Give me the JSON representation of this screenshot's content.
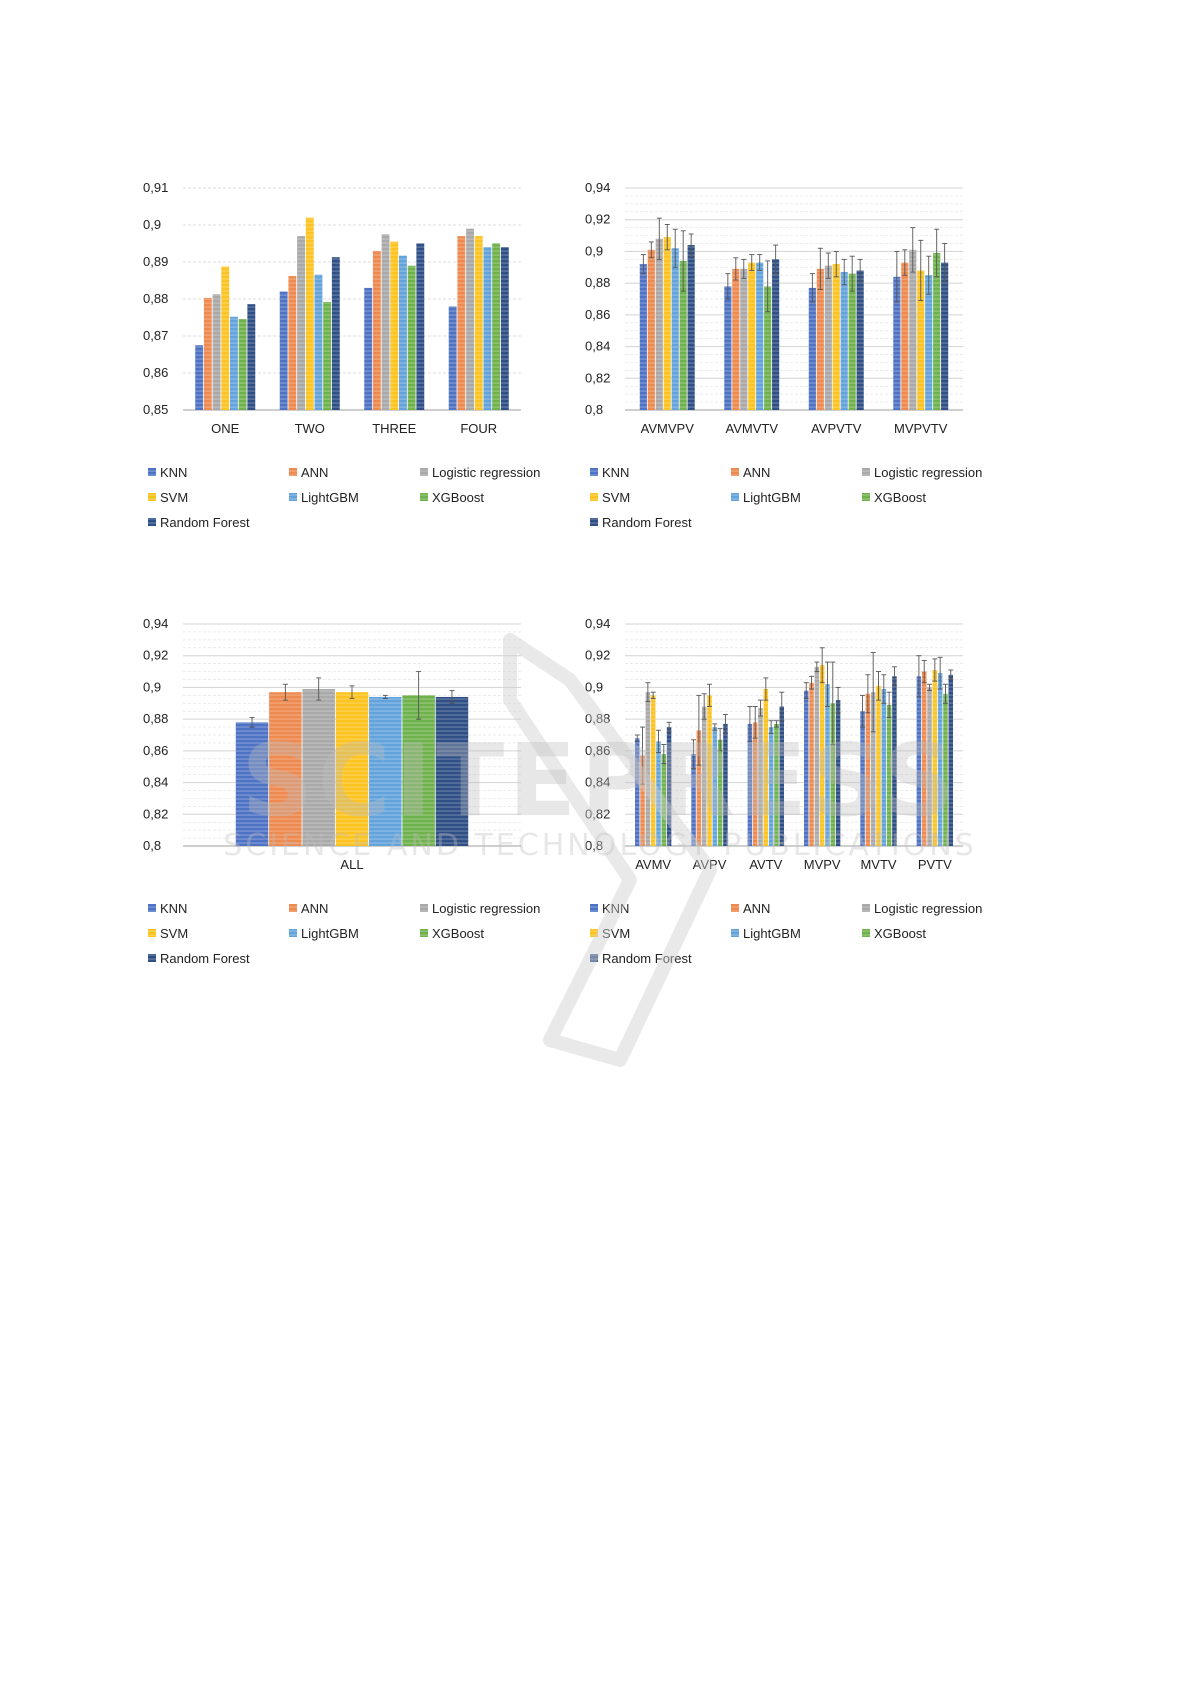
{
  "legend": [
    "KNN",
    "ANN",
    "Logistic regression",
    "SVM",
    "LightGBM",
    "XGBoost",
    "Random Forest"
  ],
  "colors": {
    "KNN": "#4f73c4",
    "ANN": "#ee8a4f",
    "Logistic regression": "#a9a9a9",
    "SVM": "#fcc321",
    "LightGBM": "#63a3dc",
    "XGBoost": "#6fb24d",
    "Random Forest": "#2f4f86"
  },
  "watermark": {
    "line1": "SCITEPRESS",
    "line2": "SCIENCE AND TECHNOLOGY PUBLICATIONS"
  },
  "chart_data": [
    {
      "type": "bar",
      "categories": [
        "ONE",
        "TWO",
        "THREE",
        "FOUR"
      ],
      "ylim": [
        0.85,
        0.91
      ],
      "yticks": [
        "0,85",
        "0,86",
        "0,87",
        "0,88",
        "0,89",
        "0,9",
        "0,91"
      ],
      "grid": true,
      "error_bars": false,
      "series": [
        {
          "name": "KNN",
          "values": [
            0.8675,
            0.882,
            0.883,
            0.878
          ]
        },
        {
          "name": "ANN",
          "values": [
            0.8803,
            0.8862,
            0.893,
            0.897
          ]
        },
        {
          "name": "Logistic regression",
          "values": [
            0.8813,
            0.897,
            0.8975,
            0.899
          ]
        },
        {
          "name": "SVM",
          "values": [
            0.8888,
            0.902,
            0.8955,
            0.897
          ]
        },
        {
          "name": "LightGBM",
          "values": [
            0.8752,
            0.8866,
            0.8917,
            0.894
          ]
        },
        {
          "name": "XGBoost",
          "values": [
            0.8746,
            0.8792,
            0.889,
            0.895
          ]
        },
        {
          "name": "Random Forest",
          "values": [
            0.8786,
            0.8913,
            0.895,
            0.894
          ]
        }
      ]
    },
    {
      "type": "bar",
      "categories": [
        "AVMVPV",
        "AVMVTV",
        "AVPVTV",
        "MVPVTV"
      ],
      "ylim": [
        0.8,
        0.94
      ],
      "yticks": [
        "0,8",
        "0,82",
        "0,84",
        "0,86",
        "0,88",
        "0,9",
        "0,92",
        "0,94"
      ],
      "grid": true,
      "error_bars": true,
      "series": [
        {
          "name": "KNN",
          "values": [
            0.892,
            0.878,
            0.877,
            0.884
          ],
          "errors": [
            0.006,
            0.008,
            0.009,
            0.016
          ]
        },
        {
          "name": "ANN",
          "values": [
            0.901,
            0.889,
            0.889,
            0.893
          ],
          "errors": [
            0.005,
            0.007,
            0.013,
            0.008
          ]
        },
        {
          "name": "Logistic regression",
          "values": [
            0.908,
            0.889,
            0.891,
            0.901
          ],
          "errors": [
            0.013,
            0.006,
            0.008,
            0.014
          ]
        },
        {
          "name": "SVM",
          "values": [
            0.909,
            0.893,
            0.892,
            0.888
          ],
          "errors": [
            0.008,
            0.005,
            0.008,
            0.019
          ]
        },
        {
          "name": "LightGBM",
          "values": [
            0.902,
            0.893,
            0.887,
            0.885
          ],
          "errors": [
            0.012,
            0.005,
            0.008,
            0.012
          ]
        },
        {
          "name": "XGBoost",
          "values": [
            0.894,
            0.878,
            0.886,
            0.899
          ],
          "errors": [
            0.019,
            0.016,
            0.011,
            0.015
          ]
        },
        {
          "name": "Random Forest",
          "values": [
            0.904,
            0.895,
            0.888,
            0.893
          ],
          "errors": [
            0.007,
            0.009,
            0.007,
            0.012
          ]
        }
      ]
    },
    {
      "type": "bar",
      "categories": [
        "ALL"
      ],
      "ylim": [
        0.8,
        0.94
      ],
      "yticks": [
        "0,8",
        "0,82",
        "0,84",
        "0,86",
        "0,88",
        "0,9",
        "0,92",
        "0,94"
      ],
      "grid": true,
      "error_bars": true,
      "series": [
        {
          "name": "KNN",
          "values": [
            0.878
          ],
          "errors": [
            0.003
          ]
        },
        {
          "name": "ANN",
          "values": [
            0.897
          ],
          "errors": [
            0.005
          ]
        },
        {
          "name": "Logistic regression",
          "values": [
            0.899
          ],
          "errors": [
            0.007
          ]
        },
        {
          "name": "SVM",
          "values": [
            0.897
          ],
          "errors": [
            0.004
          ]
        },
        {
          "name": "LightGBM",
          "values": [
            0.894
          ],
          "errors": [
            0.001
          ]
        },
        {
          "name": "XGBoost",
          "values": [
            0.895
          ],
          "errors": [
            0.015
          ]
        },
        {
          "name": "Random Forest",
          "values": [
            0.894
          ],
          "errors": [
            0.004
          ]
        }
      ]
    },
    {
      "type": "bar",
      "categories": [
        "AVMV",
        "AVPV",
        "AVTV",
        "MVPV",
        "MVTV",
        "PVTV"
      ],
      "ylim": [
        0.8,
        0.94
      ],
      "yticks": [
        "0,8",
        "0,82",
        "0,84",
        "0,86",
        "0,88",
        "0,9",
        "0,92",
        "0,94"
      ],
      "grid": true,
      "error_bars": true,
      "series": [
        {
          "name": "KNN",
          "values": [
            0.868,
            0.858,
            0.877,
            0.898,
            0.885,
            0.907
          ],
          "errors": [
            0.002,
            0.009,
            0.011,
            0.005,
            0.01,
            0.013
          ]
        },
        {
          "name": "ANN",
          "values": [
            0.857,
            0.873,
            0.878,
            0.903,
            0.896,
            0.91
          ],
          "errors": [
            0.018,
            0.022,
            0.01,
            0.004,
            0.012,
            0.007
          ]
        },
        {
          "name": "Logistic regression",
          "values": [
            0.897,
            0.888,
            0.887,
            0.913,
            0.897,
            0.9
          ],
          "errors": [
            0.006,
            0.008,
            0.005,
            0.003,
            0.025,
            0.002
          ]
        },
        {
          "name": "SVM",
          "values": [
            0.895,
            0.895,
            0.899,
            0.914,
            0.901,
            0.911
          ],
          "errors": [
            0.002,
            0.007,
            0.007,
            0.011,
            0.009,
            0.007
          ]
        },
        {
          "name": "LightGBM",
          "values": [
            0.866,
            0.875,
            0.875,
            0.902,
            0.899,
            0.909
          ],
          "errors": [
            0.007,
            0.002,
            0.004,
            0.014,
            0.009,
            0.01
          ]
        },
        {
          "name": "XGBoost",
          "values": [
            0.858,
            0.867,
            0.877,
            0.89,
            0.889,
            0.896
          ],
          "errors": [
            0.006,
            0.007,
            0.002,
            0.026,
            0.008,
            0.006
          ]
        },
        {
          "name": "Random Forest",
          "values": [
            0.875,
            0.877,
            0.888,
            0.892,
            0.907,
            0.908
          ],
          "errors": [
            0.003,
            0.006,
            0.009,
            0.008,
            0.006,
            0.003
          ]
        }
      ]
    }
  ]
}
